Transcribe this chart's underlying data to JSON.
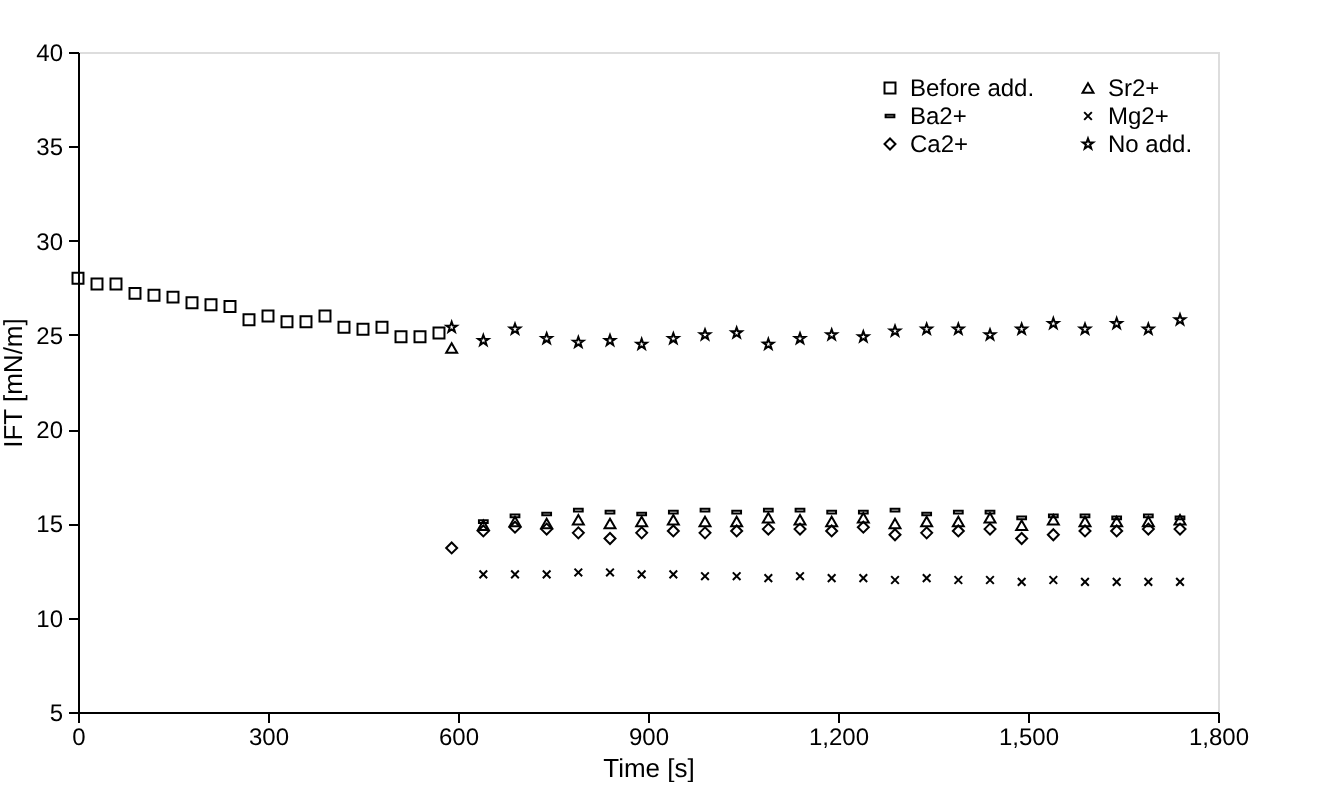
{
  "chart_data": {
    "type": "scatter",
    "xlabel": "Time [s]",
    "ylabel": "IFT [mN/m]",
    "xlim": [
      0,
      1800
    ],
    "xticks": [
      0,
      300,
      600,
      900,
      {
        "value": 1200,
        "label": "1,200"
      },
      {
        "value": 1500,
        "label": "1,500"
      },
      {
        "value": 1800,
        "label": "1,800"
      }
    ],
    "ylim": [
      5,
      40
    ],
    "yticks": [
      5,
      10,
      15,
      20,
      25,
      30,
      35,
      40
    ],
    "grid": false,
    "legend": "top right",
    "series": [
      {
        "name": "Before add.",
        "color": "#000000",
        "marker": "square",
        "x": [
          0,
          30,
          60,
          90,
          120,
          150,
          180,
          210,
          240,
          270,
          300,
          330,
          360,
          390,
          420,
          450,
          480,
          510,
          540,
          570
        ],
        "values": [
          28.0,
          27.7,
          27.7,
          27.2,
          27.1,
          27.0,
          26.7,
          26.6,
          26.5,
          25.8,
          26.0,
          25.7,
          25.7,
          26.0,
          25.4,
          25.3,
          25.4,
          24.9,
          24.9,
          25.1
        ]
      },
      {
        "name": "Ba2+",
        "color": "#000000",
        "x": [
          640,
          690,
          740,
          790,
          840,
          890,
          940,
          990,
          1040,
          1090,
          1140,
          1190,
          1240,
          1290,
          1340,
          1390,
          1440,
          1490,
          1540,
          1590,
          1640,
          1690,
          1740
        ],
        "values": [
          15.1,
          15.4,
          15.5,
          15.7,
          15.6,
          15.5,
          15.6,
          15.7,
          15.6,
          15.7,
          15.7,
          15.6,
          15.6,
          15.7,
          15.5,
          15.6,
          15.6,
          15.3,
          15.4,
          15.4,
          15.3,
          15.4,
          15.3
        ]
      },
      {
        "name": "Ca2+",
        "color": "#000000",
        "marker": "diamond",
        "x": [
          590,
          640,
          690,
          740,
          790,
          840,
          890,
          940,
          990,
          1040,
          1090,
          1140,
          1190,
          1240,
          1290,
          1340,
          1390,
          1440,
          1490,
          1540,
          1590,
          1640,
          1690,
          1740
        ],
        "values": [
          13.7,
          14.6,
          14.8,
          14.7,
          14.5,
          14.2,
          14.5,
          14.6,
          14.5,
          14.6,
          14.7,
          14.7,
          14.6,
          14.8,
          14.4,
          14.5,
          14.6,
          14.7,
          14.2,
          14.4,
          14.6,
          14.6,
          14.7,
          14.7
        ]
      },
      {
        "name": "Sr2+",
        "color": "#000000",
        "marker": "triangle",
        "x": [
          590,
          640,
          690,
          740,
          790,
          840,
          890,
          940,
          990,
          1040,
          1090,
          1140,
          1190,
          1240,
          1290,
          1340,
          1390,
          1440,
          1490,
          1540,
          1590,
          1640,
          1690,
          1740
        ],
        "values": [
          24.3,
          14.9,
          15.1,
          15.0,
          15.2,
          15.0,
          15.1,
          15.2,
          15.1,
          15.1,
          15.3,
          15.2,
          15.1,
          15.3,
          15.0,
          15.1,
          15.1,
          15.3,
          14.9,
          15.2,
          15.1,
          15.1,
          15.1,
          15.2
        ]
      },
      {
        "name": "Mg2+",
        "color": "#000000",
        "marker": "cross",
        "x": [
          640,
          690,
          740,
          790,
          840,
          890,
          940,
          990,
          1040,
          1090,
          1140,
          1190,
          1240,
          1290,
          1340,
          1390,
          1440,
          1490,
          1540,
          1590,
          1640,
          1690,
          1740
        ],
        "values": [
          12.3,
          12.3,
          12.3,
          12.4,
          12.4,
          12.3,
          12.3,
          12.2,
          12.2,
          12.1,
          12.2,
          12.1,
          12.1,
          12.0,
          12.1,
          12.0,
          12.0,
          11.9,
          12.0,
          11.9,
          11.9,
          11.9,
          11.9
        ]
      },
      {
        "name": "No add.",
        "color": "#000000",
        "marker": "star",
        "x": [
          590,
          640,
          690,
          740,
          790,
          840,
          890,
          940,
          990,
          1040,
          1090,
          1140,
          1190,
          1240,
          1290,
          1340,
          1390,
          1440,
          1490,
          1540,
          1590,
          1640,
          1690,
          1740
        ],
        "values": [
          25.4,
          24.7,
          25.3,
          24.8,
          24.6,
          24.7,
          24.5,
          24.8,
          25.0,
          25.1,
          24.5,
          24.8,
          25.0,
          24.9,
          25.2,
          25.3,
          25.3,
          25.0,
          25.3,
          25.6,
          25.3,
          25.6,
          25.3,
          25.8
        ]
      }
    ]
  }
}
